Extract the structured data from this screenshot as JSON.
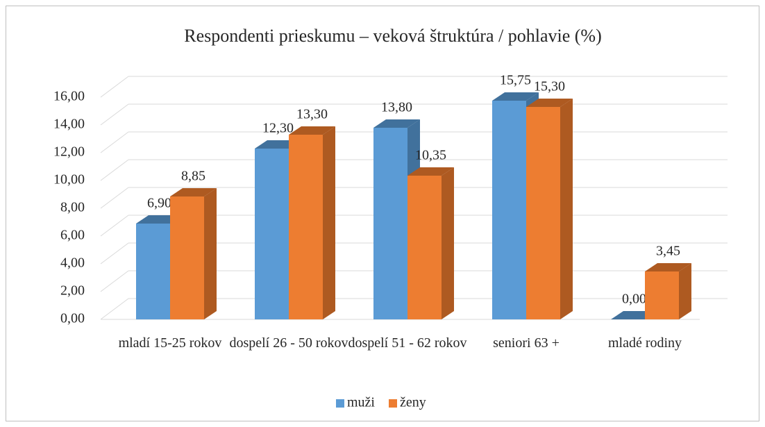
{
  "chart_data": {
    "type": "bar3d",
    "title": "Respondenti prieskumu – veková štruktúra / pohlavie (%)",
    "categories": [
      "mladí 15-25 rokov",
      "dospelí 26 - 50 rokov",
      "dospelí 51 - 62 rokov",
      "seniori 63 +",
      "mladé rodiny"
    ],
    "series": [
      {
        "name": "muži",
        "color": "#5b9bd5",
        "side_color": "#41719c",
        "values": [
          6.9,
          12.3,
          13.8,
          15.75,
          0
        ],
        "value_labels": [
          "6,90",
          "12,30",
          "13,80",
          "15,75",
          "0,00"
        ]
      },
      {
        "name": "ženy",
        "color": "#ed7d31",
        "side_color": "#ae5a21",
        "values": [
          8.85,
          13.3,
          10.35,
          15.3,
          3.45
        ],
        "value_labels": [
          "8,85",
          "13,30",
          "10,35",
          "15,30",
          "3,45"
        ]
      }
    ],
    "ylim": [
      0,
      16
    ],
    "yticks": [
      {
        "value": 0,
        "label": "0,00"
      },
      {
        "value": 2,
        "label": "2,00"
      },
      {
        "value": 4,
        "label": "4,00"
      },
      {
        "value": 6,
        "label": "6,00"
      },
      {
        "value": 8,
        "label": "8,00"
      },
      {
        "value": 10,
        "label": "10,00"
      },
      {
        "value": 12,
        "label": "12,00"
      },
      {
        "value": 14,
        "label": "14,00"
      },
      {
        "value": 16,
        "label": "16,00"
      }
    ],
    "grid": true,
    "legend": "bottom"
  }
}
